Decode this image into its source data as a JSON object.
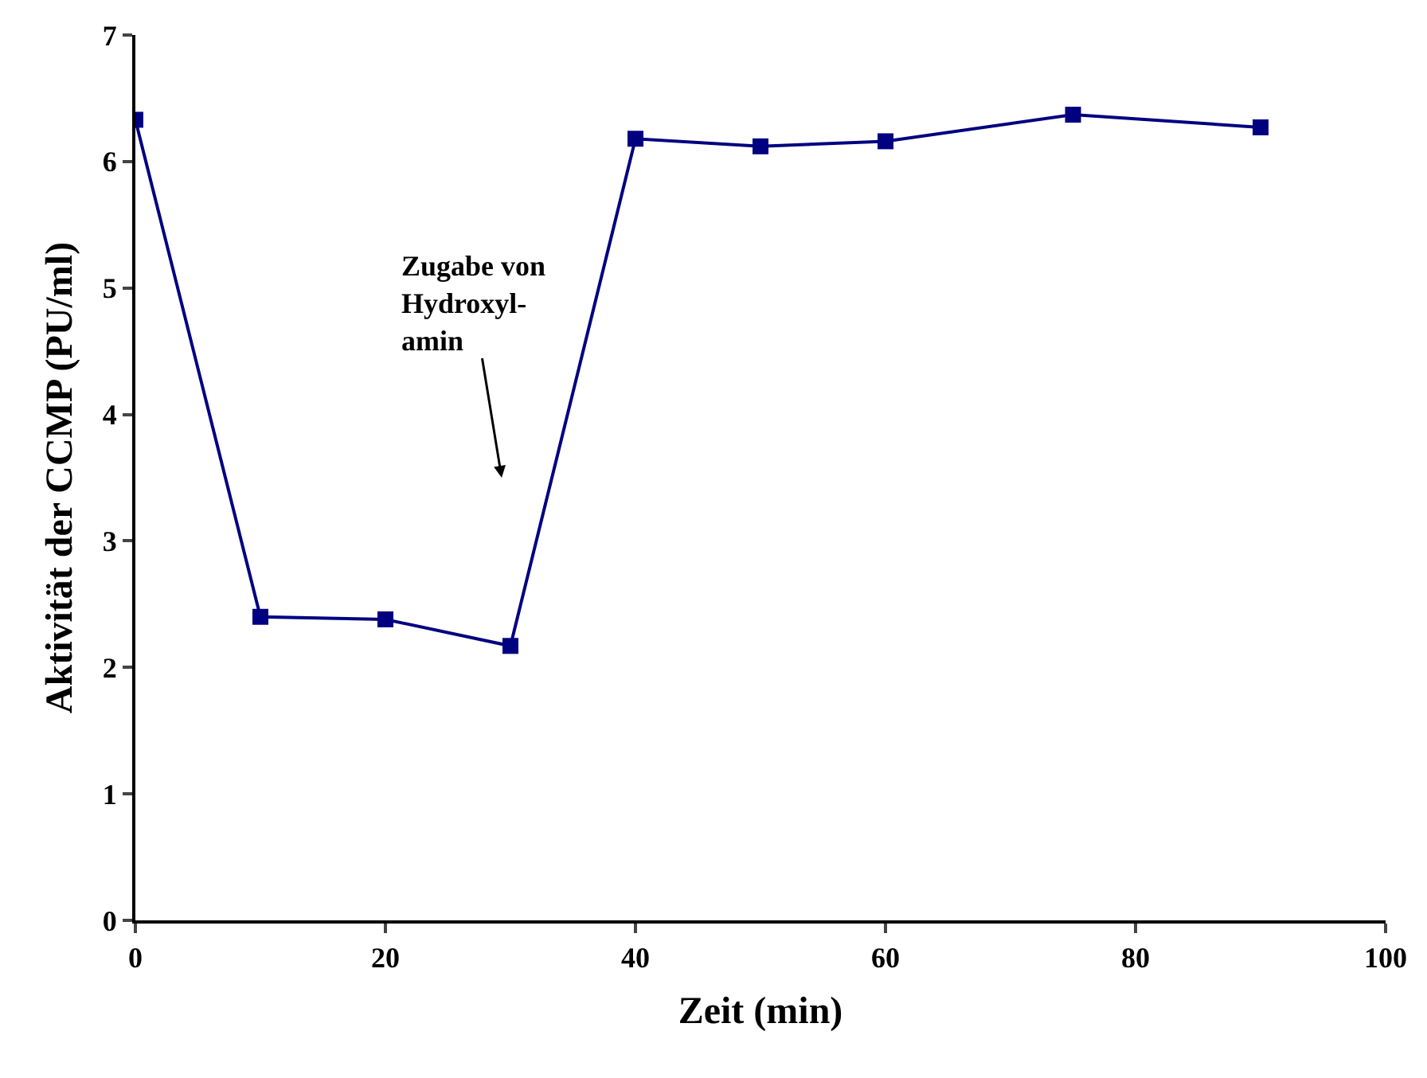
{
  "chart_data": {
    "type": "line",
    "xlabel": "Zeit (min)",
    "ylabel": "Aktivität der CCMP (PU/ml)",
    "x": [
      0,
      10,
      20,
      30,
      40,
      50,
      60,
      75,
      90
    ],
    "series": [
      {
        "color": "#000080",
        "values": [
          6.33,
          2.4,
          2.38,
          2.17,
          6.18,
          6.12,
          6.16,
          6.37,
          6.27
        ]
      }
    ],
    "xlim": [
      0,
      100
    ],
    "xticks": [
      0,
      20,
      40,
      60,
      80,
      100
    ],
    "ylim": [
      0,
      7
    ],
    "yticks": [
      0,
      1,
      2,
      3,
      4,
      5,
      6,
      7
    ],
    "annotations": [
      "Zugabe von\nHydroxyl-\namin"
    ],
    "marker": "square",
    "line_style": "solid"
  }
}
